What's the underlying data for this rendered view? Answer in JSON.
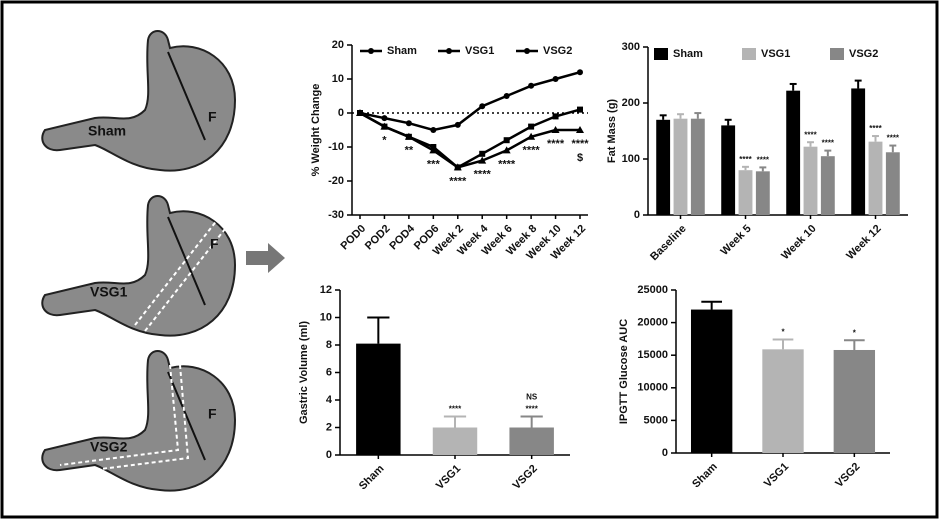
{
  "diagram": {
    "labels": [
      "Sham",
      "VSG1",
      "VSG2"
    ],
    "fundus": "F"
  },
  "chart_data": [
    {
      "type": "line",
      "ylabel": "% Weight Change",
      "categories": [
        "POD0",
        "POD2",
        "POD4",
        "POD6",
        "Week 2",
        "Week 4",
        "Week 6",
        "Week 8",
        "Week 10",
        "Week 12"
      ],
      "series": [
        {
          "name": "Sham",
          "color": "#000000",
          "marker": "circle",
          "values": [
            0,
            -1.5,
            -3,
            -5,
            -3.5,
            2,
            5,
            8,
            10,
            12
          ]
        },
        {
          "name": "VSG1",
          "color": "#000000",
          "marker": "square",
          "values": [
            0,
            -4,
            -7,
            -10,
            -16,
            -12,
            -8,
            -4,
            -1,
            1
          ]
        },
        {
          "name": "VSG2",
          "color": "#000000",
          "marker": "triangle",
          "values": [
            0,
            -4,
            -7,
            -11,
            -16,
            -14,
            -11,
            -7,
            -5,
            -5
          ]
        }
      ],
      "annotations": [
        null,
        "*",
        "**",
        "***",
        "****",
        "****",
        "****",
        "****",
        "****",
        "****"
      ],
      "annotations2": [
        null,
        null,
        null,
        null,
        null,
        null,
        null,
        null,
        null,
        "$"
      ],
      "zero_line": true,
      "ylim": [
        -30,
        20
      ],
      "yticks": [
        -30,
        -20,
        -10,
        0,
        10,
        20
      ]
    },
    {
      "type": "bar",
      "ylabel": "Fat Mass (g)",
      "categories": [
        "Baseline",
        "Week 5",
        "Week 10",
        "Week 12"
      ],
      "series": [
        {
          "name": "Sham",
          "color": "#000000",
          "values": [
            170,
            160,
            222,
            226
          ],
          "errors": [
            8,
            10,
            12,
            14
          ],
          "annotations": [
            null,
            null,
            null,
            null
          ]
        },
        {
          "name": "VSG1",
          "color": "#b4b4b4",
          "values": [
            172,
            80,
            122,
            131
          ],
          "errors": [
            8,
            6,
            8,
            10
          ],
          "annotations": [
            null,
            "****",
            "****",
            "****"
          ]
        },
        {
          "name": "VSG2",
          "color": "#878787",
          "values": [
            172,
            78,
            105,
            112
          ],
          "errors": [
            10,
            7,
            10,
            12
          ],
          "annotations": [
            null,
            "****",
            "****",
            "****"
          ]
        }
      ],
      "ylim": [
        0,
        300
      ],
      "yticks": [
        0,
        100,
        200,
        300
      ]
    },
    {
      "type": "bar",
      "ylabel": "Gastric Volume (ml)",
      "categories": [
        "Sham",
        "VSG1",
        "VSG2"
      ],
      "values": [
        8.1,
        2.0,
        2.0
      ],
      "errors": [
        1.9,
        0.8,
        0.8
      ],
      "colors": [
        "#000000",
        "#b4b4b4",
        "#878787"
      ],
      "annotations": [
        null,
        "****",
        "****"
      ],
      "annotations2": [
        null,
        null,
        "NS"
      ],
      "ylim": [
        0,
        12
      ],
      "yticks": [
        0,
        2,
        4,
        6,
        8,
        10,
        12
      ]
    },
    {
      "type": "bar",
      "ylabel": "IPGTT Glucose AUC",
      "categories": [
        "Sham",
        "VSG1",
        "VSG2"
      ],
      "values": [
        22000,
        15900,
        15800
      ],
      "errors": [
        1200,
        1500,
        1500
      ],
      "colors": [
        "#000000",
        "#b4b4b4",
        "#878787"
      ],
      "annotations": [
        null,
        "*",
        "*"
      ],
      "ylim": [
        0,
        25000
      ],
      "yticks": [
        0,
        5000,
        10000,
        15000,
        20000,
        25000
      ]
    }
  ]
}
